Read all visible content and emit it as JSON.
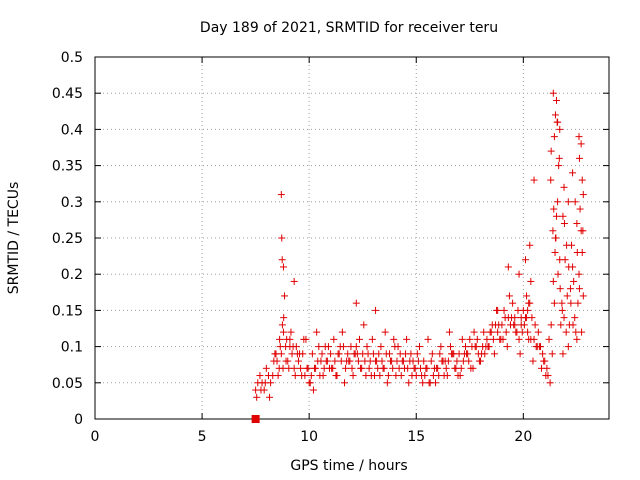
{
  "chart_data": {
    "type": "scatter",
    "title": "Day 189 of 2021, SRMTID for receiver teru",
    "xlabel": "GPS time / hours",
    "ylabel": "SRMTID / TECUs",
    "xlim": [
      0,
      24
    ],
    "ylim": [
      0,
      0.5
    ],
    "xticks": [
      0,
      5,
      10,
      15,
      20
    ],
    "xtick_labels": [
      "0",
      "5",
      "10",
      "15",
      "20"
    ],
    "yticks": [
      0,
      0.05,
      0.1,
      0.15,
      0.2,
      0.25,
      0.3,
      0.35,
      0.4,
      0.45,
      0.5
    ],
    "ytick_labels": [
      "0",
      "0.05",
      "0.1",
      "0.15",
      "0.2",
      "0.25",
      "0.3",
      "0.35",
      "0.4",
      "0.45",
      "0.5"
    ],
    "grid": true,
    "marker": "+",
    "series_color": "#e00000",
    "series": [
      {
        "name": "SRMTID",
        "x": [
          7.5,
          7.6,
          7.7,
          7.8,
          7.9,
          8.0,
          8.1,
          8.2,
          8.3,
          8.4,
          8.5,
          8.6,
          8.7,
          8.8,
          8.9,
          9.0,
          9.1,
          9.2,
          9.3,
          9.4,
          9.5,
          9.6,
          9.7,
          9.8,
          9.9,
          10.0,
          10.1,
          10.2,
          10.3,
          10.4,
          10.5,
          10.6,
          10.7,
          10.8,
          10.9,
          11.0,
          11.1,
          11.2,
          11.3,
          11.4,
          11.5,
          11.6,
          11.7,
          11.8,
          11.9,
          12.0,
          12.1,
          12.2,
          12.3,
          12.4,
          12.5,
          12.6,
          12.7,
          12.8,
          12.9,
          13.0,
          13.1,
          13.2,
          13.3,
          13.4,
          13.5,
          13.6,
          13.7,
          13.8,
          13.9,
          14.0,
          14.1,
          14.2,
          14.3,
          14.4,
          14.5,
          14.6,
          14.7,
          14.8,
          14.9,
          15.0,
          15.1,
          15.2,
          15.3,
          15.4,
          15.5,
          15.6,
          15.7,
          15.8,
          15.9,
          16.0,
          16.1,
          16.2,
          16.3,
          16.4,
          16.5,
          16.6,
          16.7,
          16.8,
          16.9,
          17.0,
          17.1,
          17.2,
          17.3,
          17.4,
          17.5,
          17.6,
          17.7,
          17.8,
          17.9,
          18.0,
          18.1,
          18.2,
          18.3,
          18.4,
          18.5,
          18.6,
          18.7,
          18.8,
          18.9,
          19.0,
          19.1,
          19.2,
          19.3,
          19.4,
          19.5,
          19.6,
          19.7,
          19.8,
          19.9,
          20.0,
          20.1,
          20.2,
          20.3,
          20.4,
          20.5,
          20.6,
          20.7,
          20.8,
          20.9,
          21.0,
          21.1,
          21.2,
          21.3,
          21.4,
          21.5,
          21.6,
          21.7,
          21.8,
          21.9,
          22.0,
          22.1,
          22.2,
          22.3,
          22.4,
          22.5,
          22.6,
          22.7,
          22.8,
          7.55,
          7.75,
          7.95,
          8.15,
          8.35,
          8.55,
          8.65,
          8.75,
          8.85,
          8.95,
          9.05,
          9.15,
          9.25,
          9.45,
          9.65,
          9.85,
          10.05,
          10.25,
          10.45,
          10.65,
          10.85,
          11.05,
          11.25,
          11.45,
          11.65,
          11.85,
          12.05,
          12.25,
          12.45,
          12.65,
          12.85,
          13.05,
          13.25,
          13.45,
          13.65,
          13.85,
          14.05,
          14.25,
          14.45,
          14.65,
          14.85,
          15.05,
          15.25,
          15.45,
          15.65,
          15.85,
          16.05,
          16.25,
          16.45,
          16.65,
          16.85,
          17.05,
          17.25,
          17.45,
          17.65,
          17.85,
          18.05,
          18.25,
          18.45,
          18.65,
          18.85,
          19.05,
          19.25,
          19.45,
          19.65,
          19.85,
          20.05,
          20.25,
          20.45,
          20.65,
          20.85,
          21.05,
          21.25,
          21.35,
          21.45,
          21.55,
          21.65,
          21.75,
          21.85,
          21.95,
          22.05,
          22.15,
          22.25,
          22.35,
          22.45,
          22.55,
          22.65,
          22.75,
          8.45,
          8.62,
          8.78,
          8.81,
          8.92,
          9.1,
          9.35,
          9.55,
          9.75,
          9.95,
          10.15,
          10.35,
          10.55,
          10.75,
          10.95,
          11.15,
          11.35,
          11.55,
          11.75,
          11.95,
          12.15,
          12.35,
          12.55,
          12.75,
          12.95,
          13.15,
          13.35,
          13.55,
          13.75,
          13.95,
          14.15,
          14.35,
          14.55,
          14.75,
          14.95,
          15.15,
          15.35,
          15.55,
          15.75,
          15.95,
          16.15,
          16.35,
          16.55,
          16.75,
          16.95,
          17.15,
          17.35,
          17.55,
          17.75,
          17.95,
          18.15,
          18.35,
          18.55,
          18.75,
          18.95,
          19.15,
          19.35,
          19.55,
          19.75,
          19.95,
          20.15,
          20.35,
          20.55,
          20.75,
          20.95,
          21.15,
          21.28,
          21.42,
          21.52,
          21.62,
          21.72,
          21.82,
          21.92,
          22.02,
          22.12,
          22.22,
          22.32,
          22.42,
          22.52,
          22.62,
          22.72,
          22.78,
          8.7,
          8.72,
          8.74,
          8.8,
          9.3,
          12.2,
          13.1,
          18.8,
          19.3,
          19.8,
          20.1,
          20.3,
          21.4,
          21.5,
          21.6,
          21.45,
          21.55,
          21.3,
          21.7,
          22.6,
          22.7,
          22.75,
          22.62,
          22.8,
          22.5,
          22.3,
          22.1,
          21.9,
          21.85,
          21.38,
          21.48,
          21.58,
          21.68,
          20.5,
          20.2,
          19.6,
          19.9,
          20.15,
          20.25,
          20.35
        ],
        "y": [
          0.04,
          0.05,
          0.06,
          0.05,
          0.04,
          0.07,
          0.06,
          0.05,
          0.06,
          0.09,
          0.08,
          0.07,
          0.09,
          0.12,
          0.1,
          0.08,
          0.11,
          0.09,
          0.07,
          0.1,
          0.08,
          0.07,
          0.09,
          0.06,
          0.07,
          0.05,
          0.06,
          0.04,
          0.07,
          0.08,
          0.06,
          0.09,
          0.07,
          0.08,
          0.1,
          0.09,
          0.07,
          0.08,
          0.06,
          0.09,
          0.08,
          0.1,
          0.07,
          0.09,
          0.08,
          0.07,
          0.09,
          0.1,
          0.08,
          0.07,
          0.09,
          0.08,
          0.1,
          0.07,
          0.06,
          0.09,
          0.08,
          0.07,
          0.06,
          0.08,
          0.07,
          0.09,
          0.06,
          0.08,
          0.07,
          0.1,
          0.08,
          0.07,
          0.06,
          0.08,
          0.09,
          0.07,
          0.08,
          0.06,
          0.07,
          0.06,
          0.08,
          0.07,
          0.05,
          0.06,
          0.07,
          0.05,
          0.08,
          0.06,
          0.05,
          0.07,
          0.09,
          0.08,
          0.06,
          0.07,
          0.08,
          0.1,
          0.09,
          0.07,
          0.08,
          0.09,
          0.07,
          0.08,
          0.1,
          0.09,
          0.11,
          0.1,
          0.12,
          0.1,
          0.09,
          0.08,
          0.1,
          0.09,
          0.11,
          0.1,
          0.12,
          0.11,
          0.13,
          0.12,
          0.11,
          0.13,
          0.15,
          0.12,
          0.14,
          0.13,
          0.16,
          0.14,
          0.12,
          0.11,
          0.13,
          0.15,
          0.14,
          0.12,
          0.16,
          0.14,
          0.11,
          0.1,
          0.12,
          0.1,
          0.09,
          0.08,
          0.07,
          0.11,
          0.13,
          0.19,
          0.25,
          0.3,
          0.22,
          0.16,
          0.14,
          0.12,
          0.1,
          0.18,
          0.21,
          0.14,
          0.11,
          0.2,
          0.26,
          0.17,
          0.03,
          0.04,
          0.05,
          0.03,
          0.08,
          0.06,
          0.1,
          0.13,
          0.17,
          0.11,
          0.07,
          0.12,
          0.1,
          0.09,
          0.06,
          0.11,
          0.05,
          0.07,
          0.1,
          0.06,
          0.08,
          0.07,
          0.06,
          0.1,
          0.05,
          0.08,
          0.06,
          0.09,
          0.07,
          0.06,
          0.08,
          0.06,
          0.09,
          0.07,
          0.05,
          0.08,
          0.06,
          0.09,
          0.07,
          0.05,
          0.08,
          0.09,
          0.06,
          0.07,
          0.05,
          0.07,
          0.06,
          0.08,
          0.06,
          0.09,
          0.07,
          0.06,
          0.09,
          0.08,
          0.07,
          0.11,
          0.09,
          0.1,
          0.12,
          0.09,
          0.13,
          0.11,
          0.1,
          0.14,
          0.12,
          0.09,
          0.13,
          0.11,
          0.08,
          0.1,
          0.07,
          0.06,
          0.05,
          0.09,
          0.16,
          0.28,
          0.35,
          0.13,
          0.09,
          0.22,
          0.17,
          0.13,
          0.24,
          0.19,
          0.12,
          0.16,
          0.29,
          0.23,
          0.09,
          0.11,
          0.07,
          0.14,
          0.08,
          0.1,
          0.06,
          0.09,
          0.11,
          0.07,
          0.09,
          0.12,
          0.08,
          0.1,
          0.07,
          0.11,
          0.09,
          0.12,
          0.08,
          0.1,
          0.09,
          0.11,
          0.13,
          0.09,
          0.11,
          0.08,
          0.1,
          0.12,
          0.09,
          0.11,
          0.1,
          0.08,
          0.11,
          0.09,
          0.07,
          0.1,
          0.08,
          0.11,
          0.09,
          0.07,
          0.1,
          0.08,
          0.12,
          0.09,
          0.06,
          0.11,
          0.09,
          0.07,
          0.1,
          0.08,
          0.12,
          0.1,
          0.13,
          0.15,
          0.11,
          0.14,
          0.17,
          0.13,
          0.15,
          0.12,
          0.14,
          0.11,
          0.13,
          0.1,
          0.08,
          0.06,
          0.33,
          0.29,
          0.25,
          0.2,
          0.18,
          0.15,
          0.27,
          0.24,
          0.21,
          0.16,
          0.13,
          0.3,
          0.23,
          0.18,
          0.12,
          0.26,
          0.31,
          0.25,
          0.22,
          0.21,
          0.19,
          0.16,
          0.15,
          0.15,
          0.21,
          0.2,
          0.22,
          0.24,
          0.45,
          0.42,
          0.41,
          0.39,
          0.44,
          0.37,
          0.4,
          0.39,
          0.38,
          0.33,
          0.36,
          0.31,
          0.27,
          0.34,
          0.3,
          0.32,
          0.28,
          0.26,
          0.23,
          0.41,
          0.36,
          0.33,
          0.15,
          0.13,
          0.14,
          0.17,
          0.16,
          0.19
        ]
      }
    ],
    "special_marker": {
      "x": 7.5,
      "y": 0.0,
      "shape": "square"
    }
  }
}
